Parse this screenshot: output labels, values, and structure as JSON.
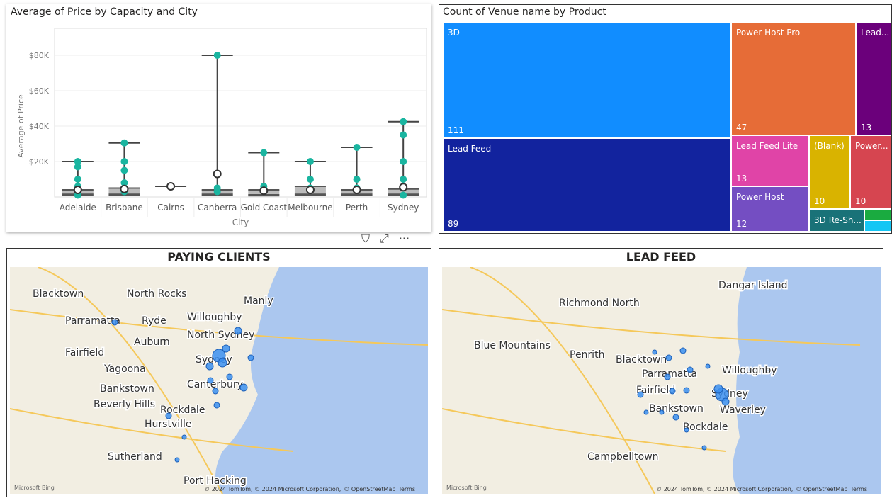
{
  "box_chart": {
    "title": "Average of Price by Capacity and City",
    "ylabel": "Average of Price",
    "xlabel": "City",
    "yticks": [
      {
        "v": 20,
        "l": "$20K"
      },
      {
        "v": 40,
        "l": "$40K"
      },
      {
        "v": 60,
        "l": "$60K"
      },
      {
        "v": 80,
        "l": "$80K"
      }
    ],
    "cities": [
      {
        "name": "Adelaide",
        "max": 20,
        "mean": 4,
        "q1": 0.5,
        "q3": 4,
        "pts": [
          20,
          17,
          10,
          6,
          1
        ]
      },
      {
        "name": "Brisbane",
        "max": 30.5,
        "mean": 4.5,
        "q1": 0.5,
        "q3": 5,
        "pts": [
          30.5,
          20,
          15,
          8,
          3
        ]
      },
      {
        "name": "Cairns",
        "max": 6,
        "mean": 6,
        "q1": 6,
        "q3": 6,
        "pts": []
      },
      {
        "name": "Canberra",
        "max": 80,
        "mean": 13,
        "q1": 0.5,
        "q3": 4,
        "pts": [
          80,
          5,
          3
        ]
      },
      {
        "name": "Gold Coast",
        "max": 25,
        "mean": 3.5,
        "q1": 0.2,
        "q3": 4,
        "pts": [
          25,
          6
        ]
      },
      {
        "name": "Melbourne",
        "max": 20,
        "mean": 4,
        "q1": 0.5,
        "q3": 6,
        "pts": [
          20,
          10,
          5
        ]
      },
      {
        "name": "Perth",
        "max": 28,
        "mean": 4,
        "q1": 0.5,
        "q3": 4,
        "pts": [
          28,
          10,
          5
        ]
      },
      {
        "name": "Sydney",
        "max": 42.5,
        "mean": 5.5,
        "q1": 0.5,
        "q3": 4.5,
        "pts": [
          42.5,
          35,
          20,
          10,
          1
        ]
      }
    ]
  },
  "treemap": {
    "title": "Count of Venue name by Product",
    "items": [
      {
        "name": "3D",
        "value": "111",
        "color": "#118dff"
      },
      {
        "name": "Lead Feed",
        "value": "89",
        "color": "#12239e"
      },
      {
        "name": "Power Host Pro",
        "value": "47",
        "color": "#e66c37"
      },
      {
        "name": "Lead...",
        "value": "13",
        "color": "#6b007b"
      },
      {
        "name": "Lead Feed Lite",
        "value": "13",
        "color": "#e044a7"
      },
      {
        "name": "(Blank)",
        "value": "10",
        "color": "#d9b300"
      },
      {
        "name": "Power...",
        "value": "10",
        "color": "#d64550"
      },
      {
        "name": "Power Host",
        "value": "12",
        "color": "#744ec2"
      },
      {
        "name": "3D Re-Sh...",
        "value": "",
        "color": "#197278"
      },
      {
        "name": "",
        "value": "",
        "color": "#1aab40"
      },
      {
        "name": "",
        "value": "",
        "color": "#15c6f4"
      }
    ]
  },
  "map1": {
    "title": "PAYING CLIENTS",
    "labels": [
      "Blacktown",
      "North Rocks",
      "Manly",
      "Parramatta",
      "Ryde",
      "Willoughby",
      "North Sydney",
      "Fairfield",
      "Auburn",
      "Sydney",
      "Yagoona",
      "Canterbury",
      "Bankstown",
      "Beverly Hills",
      "Rockdale",
      "Hurstville",
      "Sutherland",
      "Port Hacking"
    ]
  },
  "map2": {
    "title": "LEAD FEED",
    "labels": [
      "Dangar Island",
      "Richmond North",
      "Blue Mountains",
      "Penrith",
      "Blacktown",
      "Parramatta",
      "Willoughby",
      "Fairfield",
      "Sydney",
      "Bankstown",
      "Waverley",
      "Rockdale",
      "Campbelltown"
    ]
  },
  "attribution": {
    "bing": "Microsoft Bing",
    "copy": "© 2024 TomTom, © 2024 Microsoft Corporation,",
    "osm": "© OpenStreetMap",
    "terms": "Terms"
  },
  "visual_header": {
    "filter": "⛉",
    "focus": "⤢",
    "more": "···"
  }
}
